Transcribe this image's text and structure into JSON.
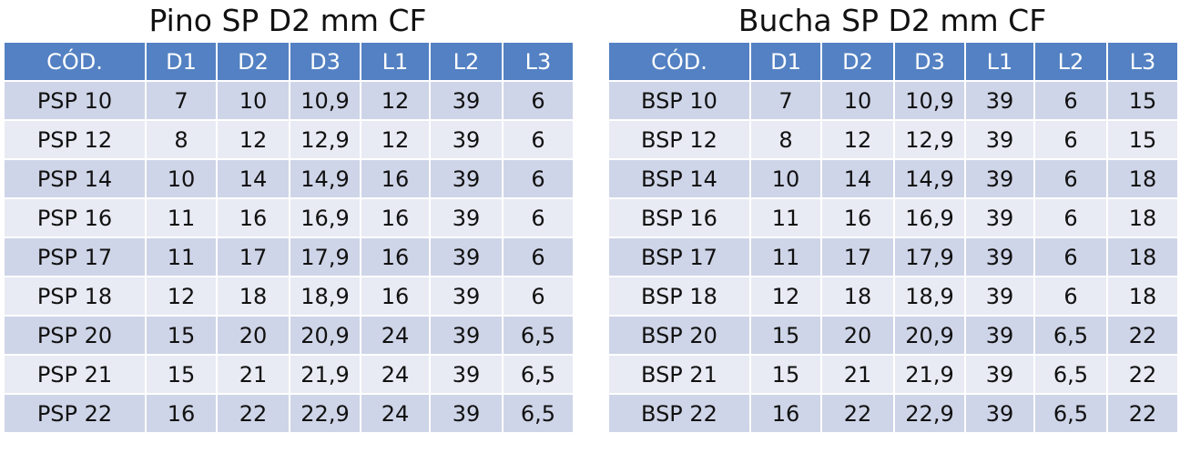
{
  "tables": [
    {
      "title": "Pino SP D2 mm CF",
      "headers": [
        "CÓD.",
        "D1",
        "D2",
        "D3",
        "L1",
        "L2",
        "L3"
      ],
      "rows": [
        [
          "PSP 10",
          "7",
          "10",
          "10,9",
          "12",
          "39",
          "6"
        ],
        [
          "PSP 12",
          "8",
          "12",
          "12,9",
          "12",
          "39",
          "6"
        ],
        [
          "PSP 14",
          "10",
          "14",
          "14,9",
          "16",
          "39",
          "6"
        ],
        [
          "PSP 16",
          "11",
          "16",
          "16,9",
          "16",
          "39",
          "6"
        ],
        [
          "PSP 17",
          "11",
          "17",
          "17,9",
          "16",
          "39",
          "6"
        ],
        [
          "PSP 18",
          "12",
          "18",
          "18,9",
          "16",
          "39",
          "6"
        ],
        [
          "PSP 20",
          "15",
          "20",
          "20,9",
          "24",
          "39",
          "6,5"
        ],
        [
          "PSP 21",
          "15",
          "21",
          "21,9",
          "24",
          "39",
          "6,5"
        ],
        [
          "PSP 22",
          "16",
          "22",
          "22,9",
          "24",
          "39",
          "6,5"
        ]
      ]
    },
    {
      "title": "Bucha SP D2 mm CF",
      "headers": [
        "CÓD.",
        "D1",
        "D2",
        "D3",
        "L1",
        "L2",
        "L3"
      ],
      "rows": [
        [
          "BSP 10",
          "7",
          "10",
          "10,9",
          "39",
          "6",
          "15"
        ],
        [
          "BSP 12",
          "8",
          "12",
          "12,9",
          "39",
          "6",
          "15"
        ],
        [
          "BSP 14",
          "10",
          "14",
          "14,9",
          "39",
          "6",
          "18"
        ],
        [
          "BSP 16",
          "11",
          "16",
          "16,9",
          "39",
          "6",
          "18"
        ],
        [
          "BSP 17",
          "11",
          "17",
          "17,9",
          "39",
          "6",
          "18"
        ],
        [
          "BSP 18",
          "12",
          "18",
          "18,9",
          "39",
          "6",
          "18"
        ],
        [
          "BSP 20",
          "15",
          "20",
          "20,9",
          "39",
          "6,5",
          "22"
        ],
        [
          "BSP 21",
          "15",
          "21",
          "21,9",
          "39",
          "6,5",
          "22"
        ],
        [
          "BSP 22",
          "16",
          "22",
          "22,9",
          "39",
          "6,5",
          "22"
        ]
      ]
    }
  ]
}
